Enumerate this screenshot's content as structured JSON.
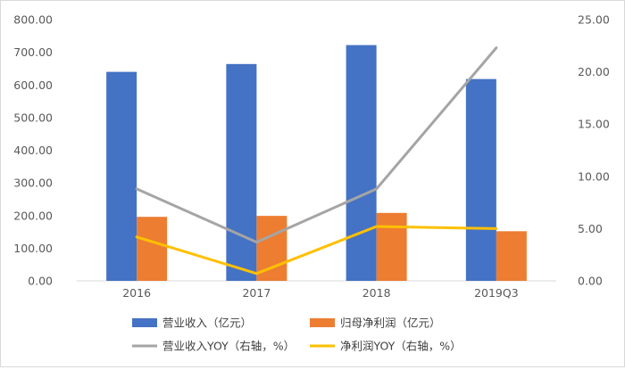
{
  "chart_data": {
    "type": "bar+line",
    "categories": [
      "2016",
      "2017",
      "2018",
      "2019Q3"
    ],
    "left_axis": {
      "min": 0,
      "max": 800,
      "step": 100,
      "ticks": [
        "0.00",
        "100.00",
        "200.00",
        "300.00",
        "400.00",
        "500.00",
        "600.00",
        "700.00",
        "800.00"
      ]
    },
    "right_axis": {
      "min": 0,
      "max": 25,
      "step": 5,
      "ticks": [
        "0.00",
        "5.00",
        "10.00",
        "15.00",
        "20.00",
        "25.00"
      ]
    },
    "bar_series": [
      {
        "name": "营业收入（亿元）",
        "color": "#4472c4",
        "axis": "left",
        "values": [
          640,
          664,
          722,
          618
        ]
      },
      {
        "name": "归母净利润（亿元）",
        "color": "#ed7d31",
        "axis": "left",
        "values": [
          196,
          199,
          208,
          152
        ]
      }
    ],
    "line_series": [
      {
        "name": "营业收入YOY（右轴，%）",
        "color": "#a5a5a5",
        "axis": "right",
        "values": [
          8.8,
          3.7,
          8.8,
          22.3
        ]
      },
      {
        "name": "净利润YOY（右轴，%）",
        "color": "#ffc000",
        "axis": "right",
        "values": [
          4.2,
          0.7,
          5.2,
          5.0
        ]
      }
    ],
    "title": "",
    "gridlines": false,
    "legend_position": "bottom"
  }
}
